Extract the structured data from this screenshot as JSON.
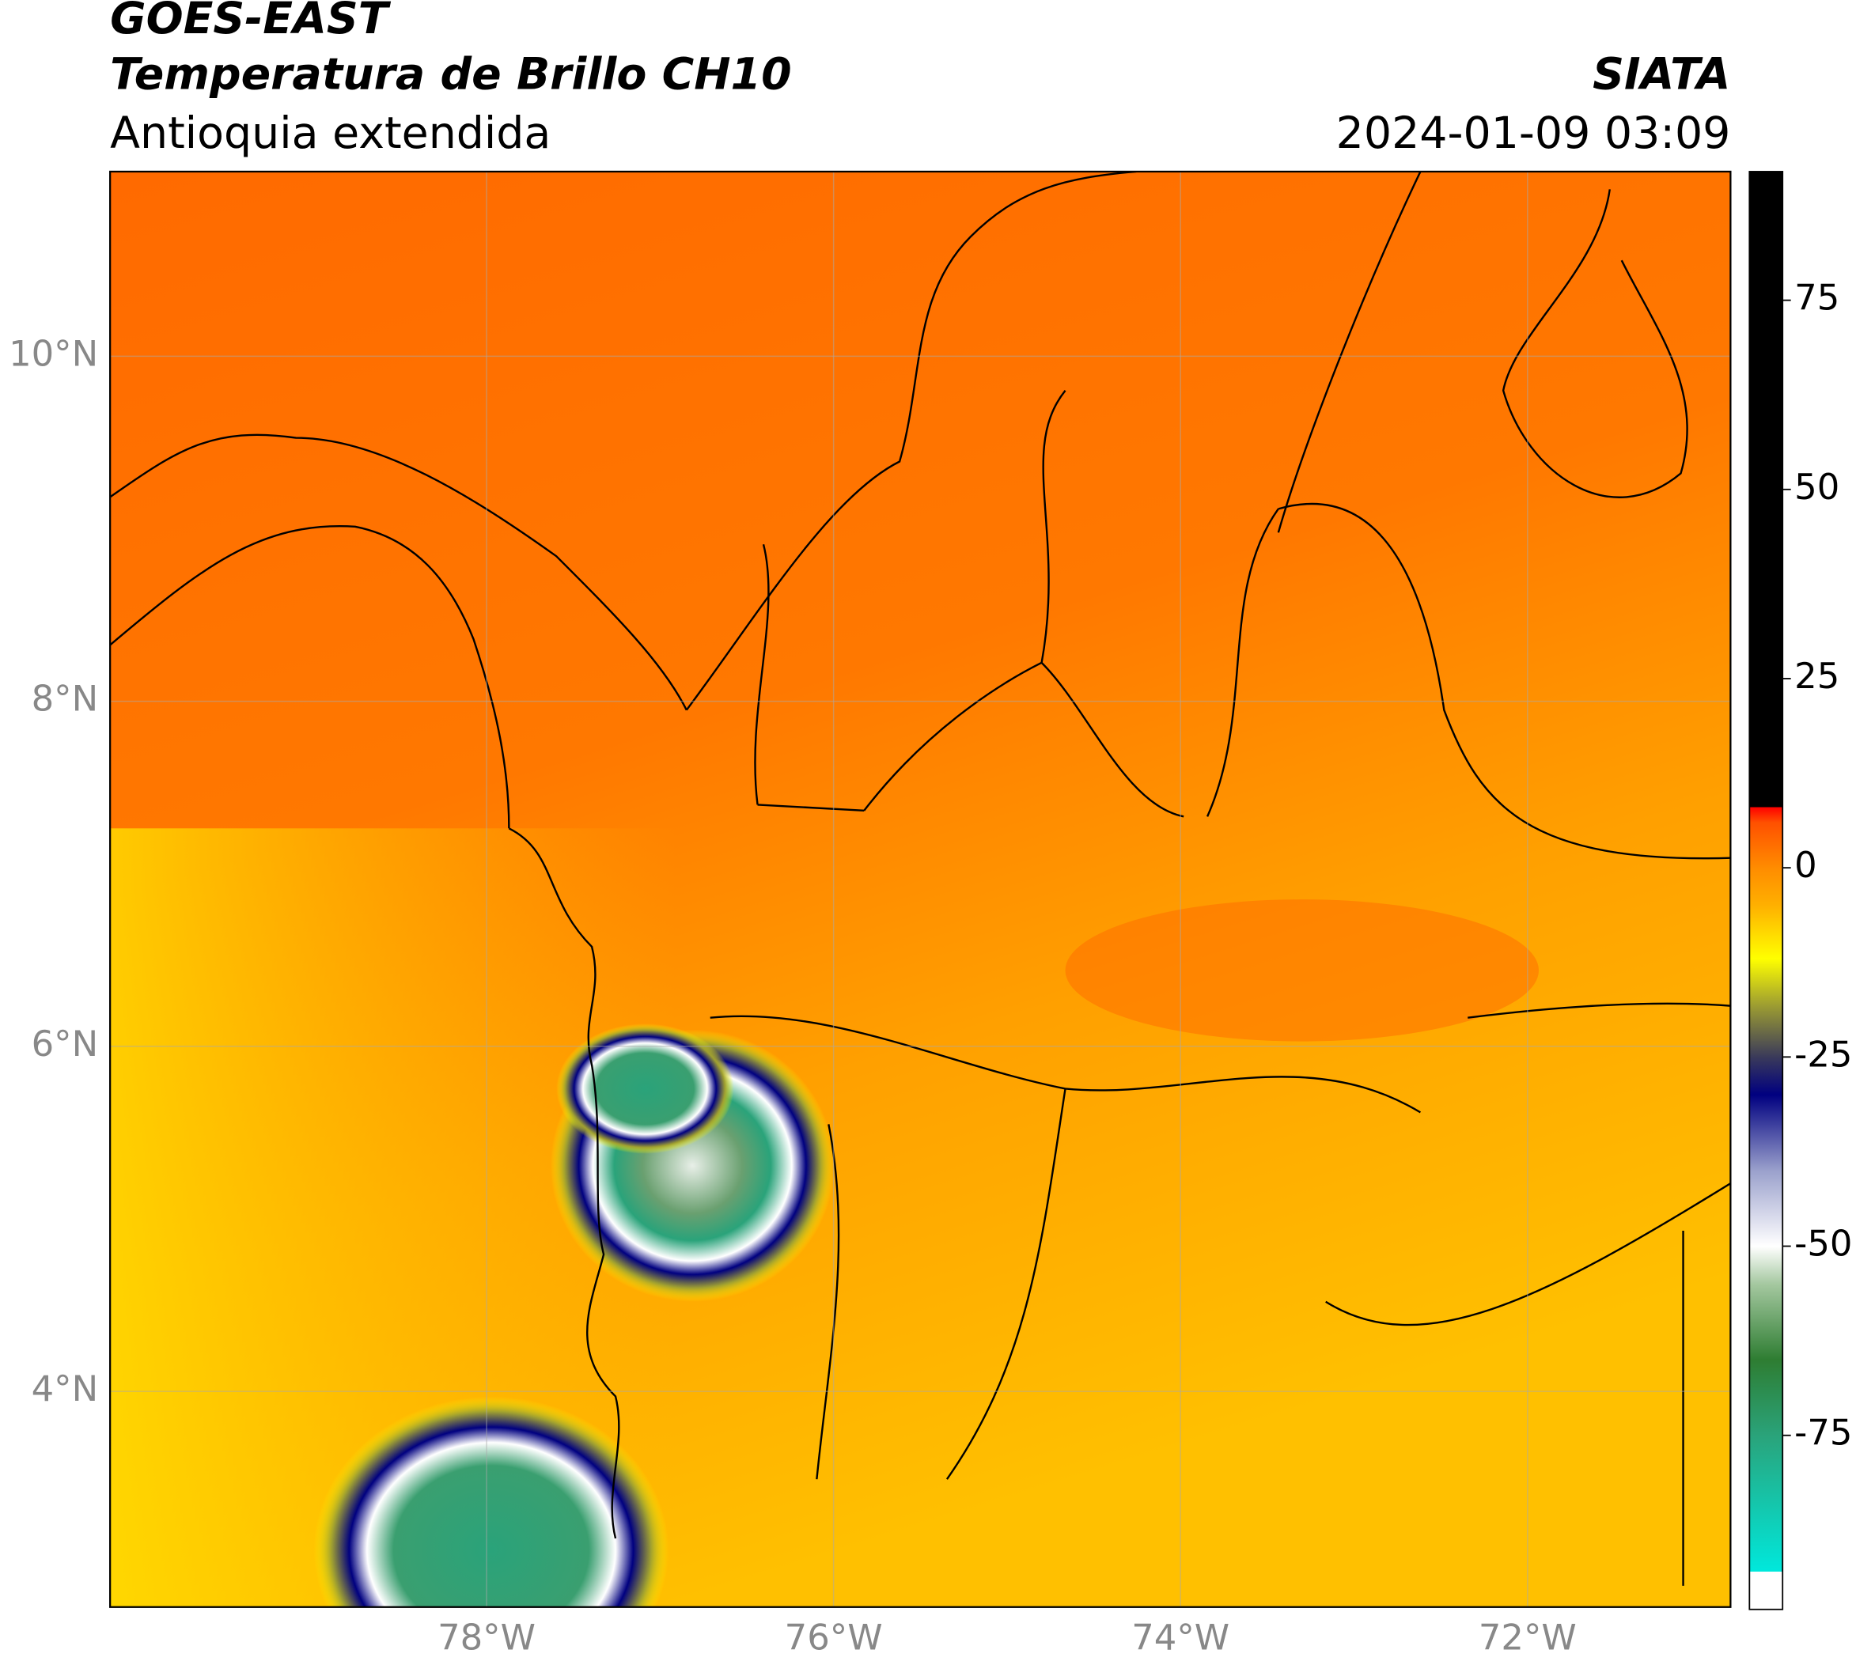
{
  "header": {
    "title": "GOES-EAST",
    "subtitle": "Temperatura de Brillo CH10",
    "region": "Antioquia extendida",
    "source": "SIATA",
    "timestamp": "2024-01-09 03:09"
  },
  "map": {
    "xlim": [
      -80.17,
      -70.83
    ],
    "ylim": [
      2.75,
      11.07
    ],
    "xticks": [
      {
        "value": -78,
        "label": "78°W"
      },
      {
        "value": -76,
        "label": "76°W"
      },
      {
        "value": -74,
        "label": "74°W"
      },
      {
        "value": -72,
        "label": "72°W"
      }
    ],
    "yticks": [
      {
        "value": 4,
        "label": "4°N"
      },
      {
        "value": 6,
        "label": "6°N"
      },
      {
        "value": 8,
        "label": "8°N"
      },
      {
        "value": 10,
        "label": "10°N"
      }
    ],
    "grid": true
  },
  "colorbar": {
    "lim": [
      -98,
      92
    ],
    "ticks": [
      -75,
      -50,
      -25,
      0,
      25,
      50,
      75
    ],
    "stops": [
      {
        "value": -98,
        "color": "#ffffff"
      },
      {
        "value": -93,
        "color": "#ffffff"
      },
      {
        "value": -93,
        "color": "#00e8dc"
      },
      {
        "value": -75,
        "color": "#2aa37a"
      },
      {
        "value": -65,
        "color": "#2e7d32"
      },
      {
        "value": -55,
        "color": "#a5c8a0"
      },
      {
        "value": -50,
        "color": "#ffffff"
      },
      {
        "value": -40,
        "color": "#9aa0cc"
      },
      {
        "value": -30,
        "color": "#000080"
      },
      {
        "value": -25,
        "color": "#3a3a5a"
      },
      {
        "value": -18,
        "color": "#a0a030"
      },
      {
        "value": -12,
        "color": "#ffff00"
      },
      {
        "value": -5,
        "color": "#ffb000"
      },
      {
        "value": 0,
        "color": "#ff8c00"
      },
      {
        "value": 6,
        "color": "#ff5000"
      },
      {
        "value": 8,
        "color": "#ff0000"
      },
      {
        "value": 8,
        "color": "#000000"
      },
      {
        "value": 92,
        "color": "#000000"
      }
    ]
  }
}
